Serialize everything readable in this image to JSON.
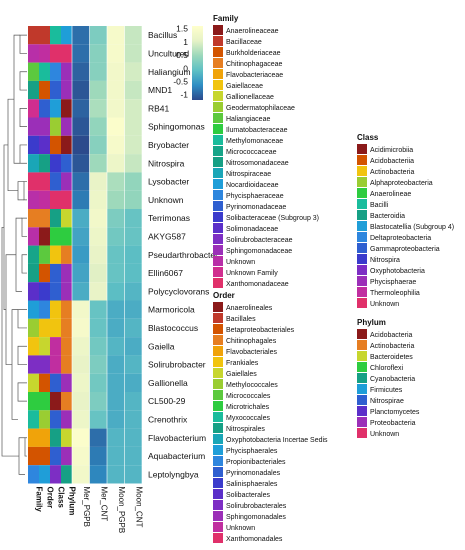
{
  "chart_data": {
    "type": "heatmap",
    "title": "",
    "columns": [
      "Mer_PGPB",
      "Mer_CNT",
      "Moon_PGPB",
      "Moon_CNT"
    ],
    "annotation_tracks": [
      "Family",
      "Order",
      "Class",
      "Phylum"
    ],
    "rows": [
      "Bacillus",
      "Uncultured",
      "Haliangium",
      "MND1",
      "RB41",
      "Sphingomonas",
      "Bryobacter",
      "Nitrospira",
      "Lysobacter",
      "Unknown",
      "Terrimonas",
      "AKYG587",
      "Pseudarthrobacter",
      "Ellin6067",
      "Polycyclovorans",
      "Marmoricola",
      "Blastococcus",
      "Gaiella",
      "Solirubrobacter",
      "Gallionella",
      "CL500-29",
      "Crenothrix",
      "Flavobacterium",
      "Aquabacterium",
      "Leptolyngbya"
    ],
    "values": [
      [
        -0.9,
        0.2,
        1.4,
        0.8
      ],
      [
        -0.9,
        0.3,
        1.4,
        0.8
      ],
      [
        -1.0,
        0.3,
        1.3,
        0.9
      ],
      [
        -1.1,
        0.5,
        1.3,
        0.8
      ],
      [
        -1.0,
        0.6,
        1.3,
        0.9
      ],
      [
        -1.1,
        0.4,
        1.5,
        0.9
      ],
      [
        -1.2,
        0.3,
        1.4,
        0.9
      ],
      [
        -1.1,
        0.5,
        1.2,
        0.8
      ],
      [
        -0.9,
        1.1,
        0.6,
        0.4
      ],
      [
        -0.8,
        1.2,
        0.5,
        0.4
      ],
      [
        -0.3,
        1.3,
        0.2,
        0.0
      ],
      [
        -0.4,
        1.2,
        0.1,
        0.0
      ],
      [
        -0.5,
        1.1,
        0.0,
        -0.1
      ],
      [
        -0.4,
        1.0,
        0.0,
        -0.1
      ],
      [
        -0.3,
        1.1,
        -0.1,
        -0.2
      ],
      [
        1.3,
        0.0,
        -0.3,
        -0.3
      ],
      [
        1.4,
        0.0,
        -0.3,
        -0.2
      ],
      [
        1.2,
        0.1,
        -0.2,
        -0.3
      ],
      [
        1.1,
        0.2,
        -0.3,
        -0.2
      ],
      [
        1.2,
        0.1,
        -0.3,
        -0.3
      ],
      [
        1.1,
        0.2,
        -0.3,
        -0.2
      ],
      [
        1.2,
        0.0,
        -0.3,
        -0.2
      ],
      [
        1.5,
        -0.9,
        -0.2,
        -0.2
      ],
      [
        1.4,
        -0.8,
        -0.2,
        -0.2
      ],
      [
        1.3,
        -0.7,
        -0.2,
        -0.2
      ]
    ],
    "annotations": {
      "Family": [
        "Bacillaceae",
        "Unknown",
        "Haliangiaceae",
        "Nitrosomonadaceae",
        "Unknown Family",
        "Sphingomonadaceae",
        "Solibacteraceae (Subgroup 3)",
        "Nitrospiraceae",
        "Xanthomonadaceae",
        "Unknown",
        "Chitinophagaceae",
        "Unknown",
        "Micrococcaceae",
        "Nitrosomonadaceae",
        "Solimonadaceae",
        "Nocardioidaceae",
        "Geodermatophilaceae",
        "Gaiellaceae",
        "Solirubrobacteraceae",
        "Gallionellaceae",
        "Ilumatobacteraceae",
        "Methylomonaceae",
        "Flavobacteriaceae",
        "Burkholderiaceae",
        "Phycisphaeraceae"
      ],
      "Order": [
        "Bacillales",
        "Unknown",
        "Myxococcales",
        "Betaproteobacteriales",
        "Pyrinomonadales",
        "Sphingomonadales",
        "Solibacterales",
        "Nitrospirales",
        "Xanthomonadales",
        "Unknown",
        "Chitinophagales",
        "Anaerolineales",
        "Micrococcales",
        "Betaproteobacteriales",
        "Salinisphaerales",
        "Propionibacteriales",
        "Frankiales",
        "Gaiellales",
        "Solirubrobacterales",
        "Betaproteobacteriales",
        "Microtrichales",
        "Methylococcales",
        "Flavobacteriales",
        "Betaproteobacteriales",
        "Phycisphaerales"
      ],
      "Class": [
        "Bacilli",
        "Unknown",
        "Deltaproteobacteria",
        "Gammaproteobacteria",
        "Blastocatellia (Subgroup 4)",
        "Alphaproteobacteria",
        "Acidobacteriia",
        "Nitrospira",
        "Gammaproteobacteria",
        "Unknown",
        "Bacteroidia",
        "Anaerolineae",
        "Actinobacteria",
        "Gammaproteobacteria",
        "Gammaproteobacteria",
        "Actinobacteria",
        "Actinobacteria",
        "Thermoleophilia",
        "Thermoleophilia",
        "Gammaproteobacteria",
        "Acidimicrobiia",
        "Gammaproteobacteria",
        "Bacteroidia",
        "Gammaproteobacteria",
        "Oxyphotobacteria"
      ],
      "Phylum": [
        "Firmicutes",
        "Unknown",
        "Proteobacteria",
        "Proteobacteria",
        "Acidobacteria",
        "Proteobacteria",
        "Acidobacteria",
        "Nitrospirae",
        "Proteobacteria",
        "Unknown",
        "Bacteroidetes",
        "Chloroflexi",
        "Actinobacteria",
        "Proteobacteria",
        "Proteobacteria",
        "Actinobacteria",
        "Actinobacteria",
        "Actinobacteria",
        "Actinobacteria",
        "Proteobacteria",
        "Actinobacteria",
        "Proteobacteria",
        "Bacteroidetes",
        "Proteobacteria",
        "Cyanobacteria"
      ]
    },
    "colorbar": {
      "ticks": [
        "1.5",
        "1",
        "0.5",
        "0",
        "-0.5",
        "-1"
      ],
      "range": [
        -1.2,
        1.6
      ],
      "colors": [
        "#2c4a8c",
        "#2e8ec4",
        "#5ec0c4",
        "#9bd8bb",
        "#e6f2c6",
        "#ffffcc"
      ]
    },
    "legends": [
      {
        "title": "Family",
        "items": [
          {
            "label": "Anaerolineaceae",
            "color": "#8b1a1a"
          },
          {
            "label": "Bacillaceae",
            "color": "#c0392b"
          },
          {
            "label": "Burkholderiaceae",
            "color": "#d35400"
          },
          {
            "label": "Chitinophagaceae",
            "color": "#e67e22"
          },
          {
            "label": "Flavobacteriaceae",
            "color": "#f0a30a"
          },
          {
            "label": "Gaiellaceae",
            "color": "#f1c40f"
          },
          {
            "label": "Gallionellaceae",
            "color": "#c7d62e"
          },
          {
            "label": "Geodermatophilaceae",
            "color": "#9acd32"
          },
          {
            "label": "Haliangiaceae",
            "color": "#5cc93e"
          },
          {
            "label": "Ilumatobacteraceae",
            "color": "#2ecc40"
          },
          {
            "label": "Methylomonaceae",
            "color": "#1abc9c"
          },
          {
            "label": "Micrococcaceae",
            "color": "#17a589"
          },
          {
            "label": "Nitrosomonadaceae",
            "color": "#16a085"
          },
          {
            "label": "Nitrospiraceae",
            "color": "#1aa6b7"
          },
          {
            "label": "Nocardioidaceae",
            "color": "#1f9ed8"
          },
          {
            "label": "Phycisphaeraceae",
            "color": "#2e86de"
          },
          {
            "label": "Pyrinomonadaceae",
            "color": "#2f5fd0"
          },
          {
            "label": "Solibacteraceae (Subgroup 3)",
            "color": "#3b3bcc"
          },
          {
            "label": "Solimonadaceae",
            "color": "#5b2fc9"
          },
          {
            "label": "Solirubrobacteraceae",
            "color": "#7d2ec4"
          },
          {
            "label": "Sphingomonadaceae",
            "color": "#9b2fb8"
          },
          {
            "label": "Unknown",
            "color": "#b82fa8"
          },
          {
            "label": "Unknown Family",
            "color": "#d02e8f"
          },
          {
            "label": "Xanthomonadaceae",
            "color": "#e0306a"
          }
        ]
      },
      {
        "title": "Order",
        "items": [
          {
            "label": "Anaerolineales",
            "color": "#8b1a1a"
          },
          {
            "label": "Bacillales",
            "color": "#c0392b"
          },
          {
            "label": "Betaproteobacteriales",
            "color": "#d35400"
          },
          {
            "label": "Chitinophagales",
            "color": "#e67e22"
          },
          {
            "label": "Flavobacteriales",
            "color": "#f0a30a"
          },
          {
            "label": "Frankiales",
            "color": "#f1c40f"
          },
          {
            "label": "Gaiellales",
            "color": "#c7d62e"
          },
          {
            "label": "Methylococcales",
            "color": "#9acd32"
          },
          {
            "label": "Micrococcales",
            "color": "#5cc93e"
          },
          {
            "label": "Microtrichales",
            "color": "#2ecc40"
          },
          {
            "label": "Myxococcales",
            "color": "#1abc9c"
          },
          {
            "label": "Nitrospirales",
            "color": "#16a085"
          },
          {
            "label": "Oxyphotobacteria Incertae Sedis",
            "color": "#1aa6b7"
          },
          {
            "label": "Phycisphaerales",
            "color": "#1f9ed8"
          },
          {
            "label": "Propionibacteriales",
            "color": "#2e86de"
          },
          {
            "label": "Pyrinomonadales",
            "color": "#2f5fd0"
          },
          {
            "label": "Salinisphaerales",
            "color": "#3b3bcc"
          },
          {
            "label": "Solibacterales",
            "color": "#5b2fc9"
          },
          {
            "label": "Solirubrobacterales",
            "color": "#7d2ec4"
          },
          {
            "label": "Sphingomonadales",
            "color": "#9b2fb8"
          },
          {
            "label": "Unknown",
            "color": "#c02ea0"
          },
          {
            "label": "Xanthomonadales",
            "color": "#e0306a"
          }
        ]
      },
      {
        "title": "Class",
        "items": [
          {
            "label": "Acidimicrobiia",
            "color": "#8b1a1a"
          },
          {
            "label": "Acidobacteriia",
            "color": "#d35400"
          },
          {
            "label": "Actinobacteria",
            "color": "#f1c40f"
          },
          {
            "label": "Alphaproteobacteria",
            "color": "#9acd32"
          },
          {
            "label": "Anaerolineae",
            "color": "#2ecc40"
          },
          {
            "label": "Bacilli",
            "color": "#1abc9c"
          },
          {
            "label": "Bacteroidia",
            "color": "#16a085"
          },
          {
            "label": "Blastocatellia (Subgroup 4)",
            "color": "#1f9ed8"
          },
          {
            "label": "Deltaproteobacteria",
            "color": "#2e86de"
          },
          {
            "label": "Gammaproteobacteria",
            "color": "#2f5fd0"
          },
          {
            "label": "Nitrospira",
            "color": "#3b3bcc"
          },
          {
            "label": "Oxyphotobacteria",
            "color": "#7d2ec4"
          },
          {
            "label": "Phycisphaerae",
            "color": "#9b2fb8"
          },
          {
            "label": "Thermoleophilia",
            "color": "#c02ea0"
          },
          {
            "label": "Unknown",
            "color": "#e0306a"
          }
        ]
      },
      {
        "title": "Phylum",
        "items": [
          {
            "label": "Acidobacteria",
            "color": "#8b1a1a"
          },
          {
            "label": "Actinobacteria",
            "color": "#e67e22"
          },
          {
            "label": "Bacteroidetes",
            "color": "#c7d62e"
          },
          {
            "label": "Chloroflexi",
            "color": "#2ecc40"
          },
          {
            "label": "Cyanobacteria",
            "color": "#16a085"
          },
          {
            "label": "Firmicutes",
            "color": "#1f9ed8"
          },
          {
            "label": "Nitrospirae",
            "color": "#2f5fd0"
          },
          {
            "label": "Planctomycetes",
            "color": "#5b2fc9"
          },
          {
            "label": "Proteobacteria",
            "color": "#9b2fb8"
          },
          {
            "label": "Unknown",
            "color": "#e0306a"
          }
        ]
      }
    ]
  }
}
